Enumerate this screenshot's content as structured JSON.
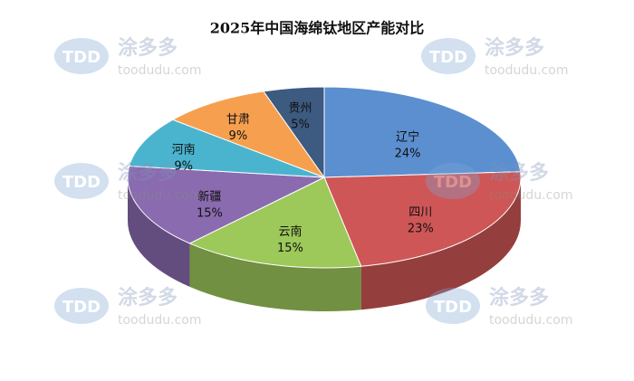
{
  "chart_data": {
    "type": "pie",
    "title": "2025年中国海绵钛地区产能对比",
    "categories": [
      "辽宁",
      "四川",
      "云南",
      "新疆",
      "河南",
      "甘肃",
      "贵州"
    ],
    "values": [
      24,
      23,
      15,
      15,
      9,
      9,
      5
    ],
    "value_labels": [
      "24%",
      "23%",
      "15%",
      "15%",
      "9%",
      "9%",
      "5%"
    ],
    "colors": [
      "#5b8fd0",
      "#cf5656",
      "#9dc85a",
      "#8a6bb0",
      "#4ab4cf",
      "#f6a04f",
      "#3d5a80"
    ]
  },
  "watermark": {
    "logo": "TDD",
    "brand": "涂多多",
    "site": "toodudu.com"
  }
}
